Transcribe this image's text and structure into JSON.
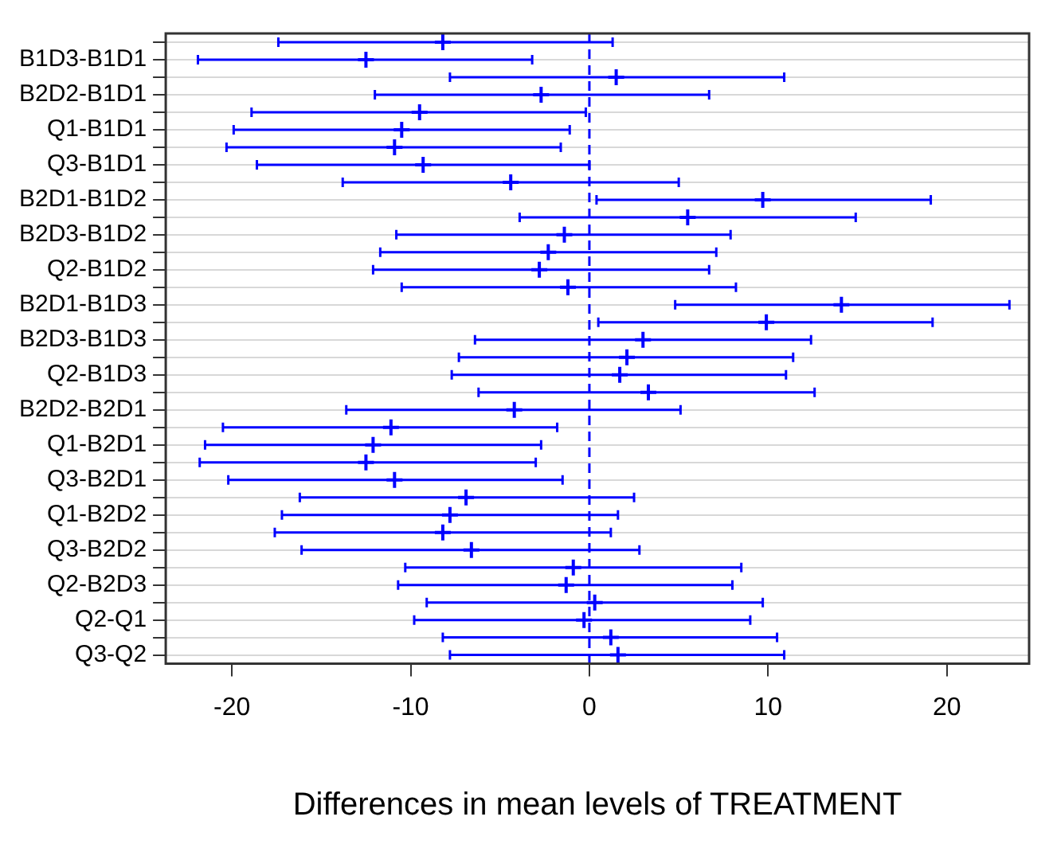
{
  "chart_data": {
    "type": "scatter",
    "orientation": "horizontal",
    "xlabel": "Differences in mean levels of TREATMENT",
    "categories": [
      null,
      "B1D3-B1D1",
      null,
      "B2D2-B1D1",
      null,
      "Q1-B1D1",
      null,
      "Q3-B1D1",
      null,
      "B2D1-B1D2",
      null,
      "B2D3-B1D2",
      null,
      "Q2-B1D2",
      null,
      "B2D1-B1D3",
      null,
      "B2D3-B1D3",
      null,
      "Q2-B1D3",
      null,
      "B2D2-B2D1",
      null,
      "Q1-B2D1",
      null,
      "Q3-B2D1",
      null,
      "Q1-B2D2",
      null,
      "Q3-B2D2",
      null,
      "Q2-B2D3",
      null,
      "Q2-Q1",
      null,
      "Q3-Q2"
    ],
    "series": [
      {
        "color": "#0000ff",
        "values": [
          -8.2,
          -12.5,
          1.5,
          -2.7,
          -9.5,
          -10.5,
          -10.9,
          -9.3,
          -4.4,
          9.7,
          5.5,
          -1.4,
          -2.3,
          -2.8,
          -1.2,
          14.1,
          9.9,
          3.0,
          2.1,
          1.7,
          3.3,
          -4.2,
          -11.1,
          -12.1,
          -12.5,
          -10.9,
          -6.9,
          -7.8,
          -8.2,
          -6.6,
          -0.9,
          -1.3,
          0.3,
          -0.3,
          1.2,
          1.6
        ],
        "errors": [
          [
            -17.4,
            1.3
          ],
          [
            -21.9,
            -3.2
          ],
          [
            -7.8,
            10.9
          ],
          [
            -12.0,
            6.7
          ],
          [
            -18.9,
            -0.2
          ],
          [
            -19.9,
            -1.1
          ],
          [
            -20.3,
            -1.6
          ],
          [
            -18.6,
            0.0
          ],
          [
            -13.8,
            5.0
          ],
          [
            0.4,
            19.1
          ],
          [
            -3.9,
            14.9
          ],
          [
            -10.8,
            7.9
          ],
          [
            -11.7,
            7.1
          ],
          [
            -12.1,
            6.7
          ],
          [
            -10.5,
            8.2
          ],
          [
            4.8,
            23.5
          ],
          [
            0.5,
            19.2
          ],
          [
            -6.4,
            12.4
          ],
          [
            -7.3,
            11.4
          ],
          [
            -7.7,
            11.0
          ],
          [
            -6.2,
            12.6
          ],
          [
            -13.6,
            5.1
          ],
          [
            -20.5,
            -1.8
          ],
          [
            -21.5,
            -2.7
          ],
          [
            -21.8,
            -3.0
          ],
          [
            -20.2,
            -1.5
          ],
          [
            -16.2,
            2.5
          ],
          [
            -17.2,
            1.6
          ],
          [
            -17.6,
            1.2
          ],
          [
            -16.1,
            2.8
          ],
          [
            -10.3,
            8.5
          ],
          [
            -10.7,
            8.0
          ],
          [
            -9.1,
            9.7
          ],
          [
            -9.8,
            9.0
          ],
          [
            -8.2,
            10.5
          ],
          [
            -7.8,
            10.9
          ]
        ]
      }
    ],
    "marker": "cross",
    "xlim": [
      -23.7,
      24.6
    ],
    "xticks": [
      -20,
      -10,
      0,
      10,
      20
    ],
    "grid": "y",
    "ref_lines": [
      {
        "axis": "x",
        "value": 0,
        "color": "#0000ff",
        "line_style": "dashed"
      }
    ]
  }
}
